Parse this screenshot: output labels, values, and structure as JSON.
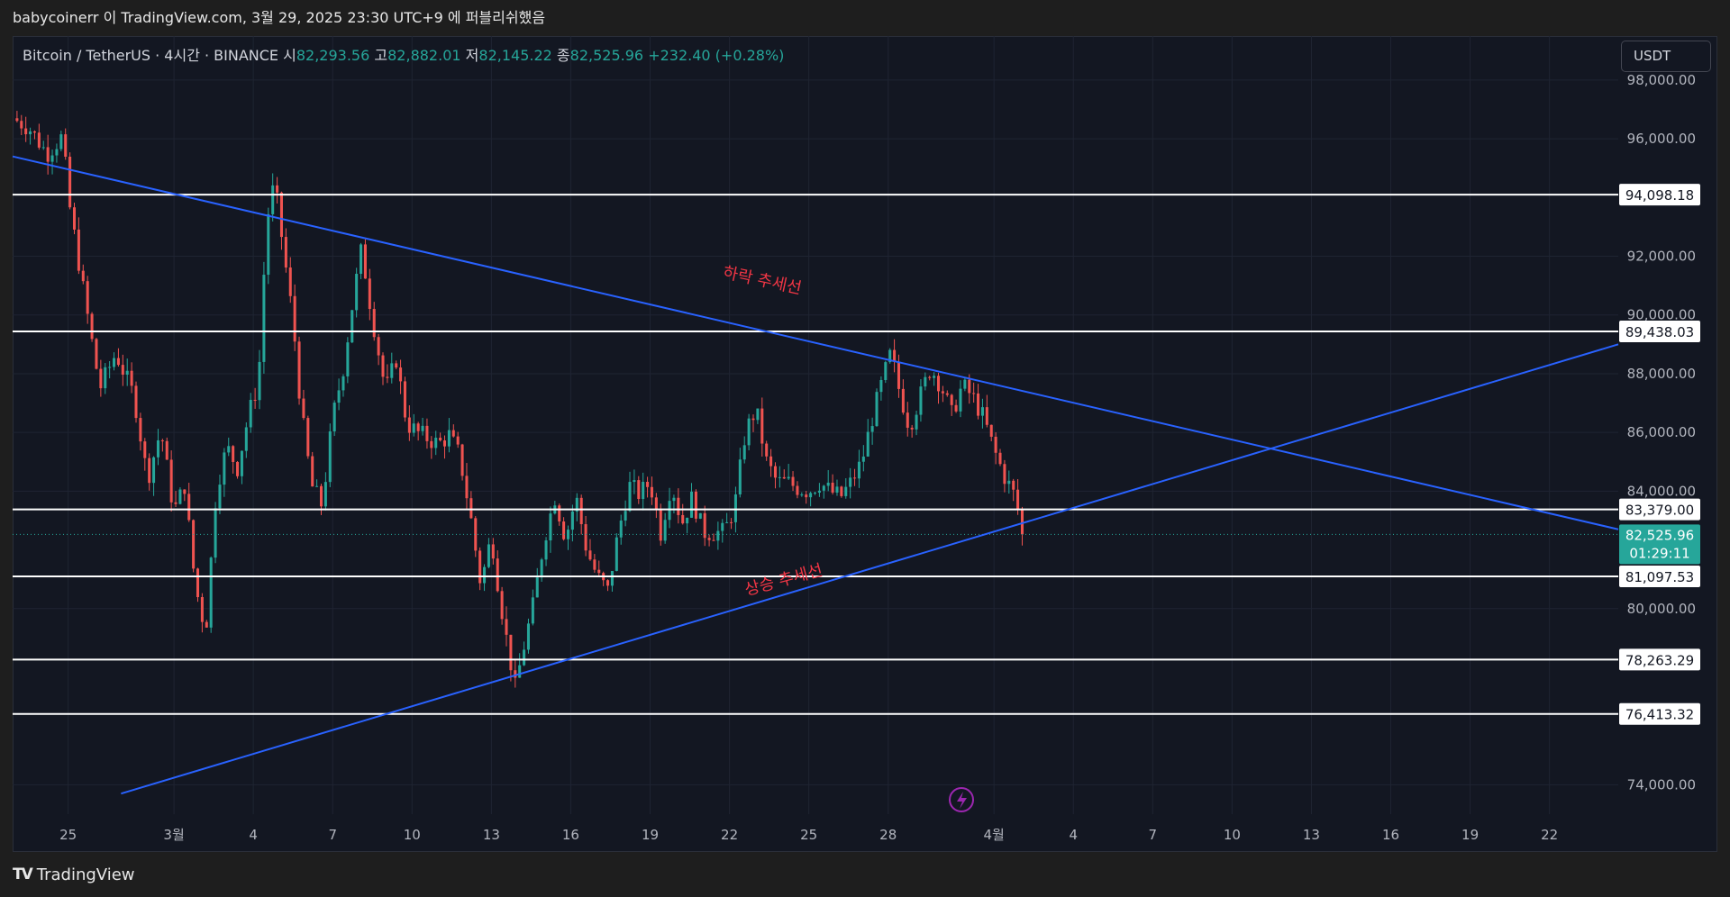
{
  "header": {
    "attribution": "babycoinerr 이 TradingView.com, 3월 29, 2025 23:30 UTC+9 에 퍼블리쉬했음"
  },
  "legend": {
    "symbol": "Bitcoin / TetherUS · 4시간 · BINANCE",
    "open_label": "시",
    "open": "82,293.56",
    "high_label": "고",
    "high": "82,882.01",
    "low_label": "저",
    "low": "82,145.22",
    "close_label": "종",
    "close": "82,525.96",
    "change": "+232.40 (+0.28%)"
  },
  "currency": "USDT",
  "footer": {
    "brand": "TradingView",
    "logo": "TV"
  },
  "colors": {
    "background": "#131722",
    "up": "#26a69a",
    "down": "#ef5350",
    "trendline": "#2962ff",
    "level_line": "#ffffff",
    "annotation": "#f23645"
  },
  "chart_data": {
    "type": "candlestick",
    "timeframe": "4h",
    "ylim": [
      73000,
      99500
    ],
    "y_ticks": [
      {
        "value": 98000,
        "label": "98,000.00"
      },
      {
        "value": 96000,
        "label": "96,000.00"
      },
      {
        "value": 92000,
        "label": "92,000.00"
      },
      {
        "value": 90000,
        "label": "90,000.00"
      },
      {
        "value": 88000,
        "label": "88,000.00"
      },
      {
        "value": 86000,
        "label": "86,000.00"
      },
      {
        "value": 84000,
        "label": "84,000.00"
      },
      {
        "value": 80000,
        "label": "80,000.00"
      },
      {
        "value": 74000,
        "label": "74,000.00"
      }
    ],
    "x_ticks": [
      {
        "day": -4,
        "label": "25"
      },
      {
        "day": 0,
        "label": "3월"
      },
      {
        "day": 3,
        "label": "4"
      },
      {
        "day": 6,
        "label": "7"
      },
      {
        "day": 9,
        "label": "10"
      },
      {
        "day": 12,
        "label": "13"
      },
      {
        "day": 15,
        "label": "16"
      },
      {
        "day": 18,
        "label": "19"
      },
      {
        "day": 21,
        "label": "22"
      },
      {
        "day": 24,
        "label": "25"
      },
      {
        "day": 27,
        "label": "28"
      },
      {
        "day": 31,
        "label": "4월"
      },
      {
        "day": 34,
        "label": "4"
      },
      {
        "day": 37,
        "label": "7"
      },
      {
        "day": 40,
        "label": "10"
      },
      {
        "day": 43,
        "label": "13"
      },
      {
        "day": 46,
        "label": "16"
      },
      {
        "day": 49,
        "label": "19"
      },
      {
        "day": 52,
        "label": "22"
      }
    ],
    "x_range_days": [
      -6.1,
      54.6
    ],
    "horizontal_levels": [
      {
        "value": 94098.18,
        "label": "94,098.18"
      },
      {
        "value": 89438.03,
        "label": "89,438.03"
      },
      {
        "value": 83379.0,
        "label": "83,379.00"
      },
      {
        "value": 81097.53,
        "label": "81,097.53"
      },
      {
        "value": 78263.29,
        "label": "78,263.29"
      },
      {
        "value": 76413.32,
        "label": "76,413.32"
      }
    ],
    "last_price": {
      "value": 82525.96,
      "label": "82,525.96",
      "countdown": "01:29:11"
    },
    "trendlines": [
      {
        "name": "하락 추세선",
        "start": {
          "day": -6.1,
          "price": 95400
        },
        "end": {
          "day": 54.6,
          "price": 82700
        }
      },
      {
        "name": "상승 추세선",
        "start": {
          "day": -2,
          "price": 73700
        },
        "end": {
          "day": 54.6,
          "price": 89000
        }
      }
    ],
    "price_path": [
      [
        -6.1,
        96700
      ],
      [
        -5.5,
        96400
      ],
      [
        -4.8,
        95500
      ],
      [
        -4.2,
        96100
      ],
      [
        -4.0,
        94000
      ],
      [
        -3.6,
        91800
      ],
      [
        -3.2,
        89600
      ],
      [
        -2.8,
        87500
      ],
      [
        -2.2,
        88700
      ],
      [
        -1.5,
        87200
      ],
      [
        -1.0,
        84400
      ],
      [
        -0.5,
        86100
      ],
      [
        0.0,
        83300
      ],
      [
        0.4,
        84200
      ],
      [
        0.8,
        80800
      ],
      [
        1.2,
        79200
      ],
      [
        1.6,
        84100
      ],
      [
        2.0,
        85500
      ],
      [
        2.4,
        84800
      ],
      [
        2.8,
        86500
      ],
      [
        3.2,
        87800
      ],
      [
        3.5,
        93200
      ],
      [
        3.8,
        94500
      ],
      [
        4.2,
        91800
      ],
      [
        4.5,
        89800
      ],
      [
        4.8,
        86800
      ],
      [
        5.2,
        84200
      ],
      [
        5.6,
        83500
      ],
      [
        6.0,
        86500
      ],
      [
        6.4,
        88200
      ],
      [
        6.8,
        90700
      ],
      [
        7.1,
        92300
      ],
      [
        7.3,
        91000
      ],
      [
        7.6,
        89400
      ],
      [
        8.0,
        87400
      ],
      [
        8.4,
        88500
      ],
      [
        8.8,
        86300
      ],
      [
        9.2,
        86000
      ],
      [
        9.6,
        85800
      ],
      [
        10.0,
        85600
      ],
      [
        10.4,
        85900
      ],
      [
        10.8,
        85200
      ],
      [
        11.2,
        83200
      ],
      [
        11.6,
        80800
      ],
      [
        12.0,
        82500
      ],
      [
        12.3,
        80500
      ],
      [
        12.6,
        78800
      ],
      [
        12.9,
        77300
      ],
      [
        13.2,
        78600
      ],
      [
        13.6,
        80200
      ],
      [
        14.0,
        82400
      ],
      [
        14.4,
        83800
      ],
      [
        14.8,
        82400
      ],
      [
        15.2,
        83800
      ],
      [
        15.6,
        82000
      ],
      [
        16.0,
        81100
      ],
      [
        16.4,
        80600
      ],
      [
        16.8,
        82600
      ],
      [
        17.2,
        84200
      ],
      [
        17.6,
        83900
      ],
      [
        18.0,
        84300
      ],
      [
        18.4,
        82600
      ],
      [
        18.8,
        84300
      ],
      [
        19.2,
        82900
      ],
      [
        19.6,
        83800
      ],
      [
        20.0,
        82600
      ],
      [
        20.4,
        82600
      ],
      [
        20.8,
        82600
      ],
      [
        21.2,
        83500
      ],
      [
        21.6,
        86000
      ],
      [
        22.0,
        86800
      ],
      [
        22.4,
        85000
      ],
      [
        22.8,
        84300
      ],
      [
        23.2,
        84300
      ],
      [
        23.6,
        84100
      ],
      [
        24.0,
        84000
      ],
      [
        24.4,
        84300
      ],
      [
        24.8,
        84000
      ],
      [
        25.2,
        83800
      ],
      [
        25.6,
        84300
      ],
      [
        26.0,
        85000
      ],
      [
        26.4,
        86500
      ],
      [
        26.8,
        87800
      ],
      [
        27.1,
        88700
      ],
      [
        27.4,
        87500
      ],
      [
        27.8,
        86200
      ],
      [
        28.2,
        87200
      ],
      [
        28.6,
        88200
      ],
      [
        29.0,
        87600
      ],
      [
        29.4,
        86600
      ],
      [
        29.8,
        87600
      ],
      [
        30.2,
        87200
      ],
      [
        30.6,
        86500
      ],
      [
        31.0,
        85400
      ],
      [
        31.4,
        84500
      ],
      [
        31.8,
        83800
      ],
      [
        32.1,
        82526
      ]
    ]
  },
  "annotations": [
    {
      "text": "하락 추세선",
      "day": 22.2,
      "price": 91000,
      "angle": 12
    },
    {
      "text": "상승 추세선",
      "day": 23.1,
      "price": 80800,
      "angle": -15
    }
  ]
}
